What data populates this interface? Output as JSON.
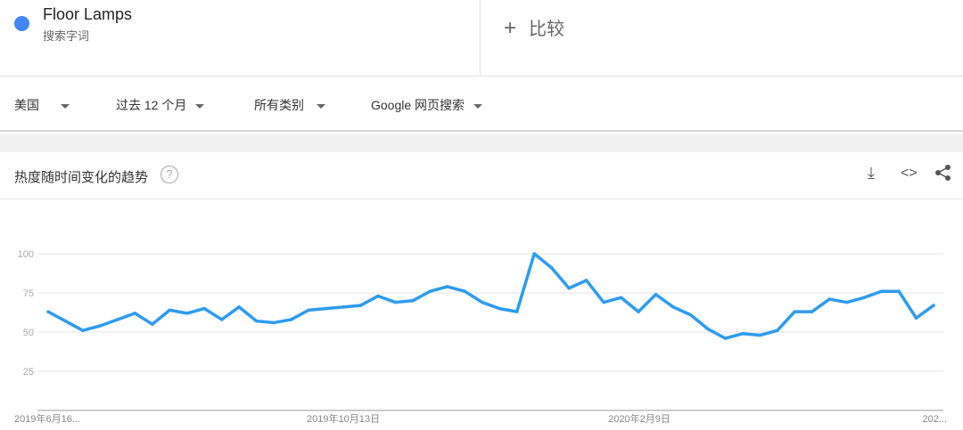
{
  "term": {
    "name": "Floor Lamps",
    "subtitle": "搜索字词",
    "color": "#4285f4"
  },
  "compare": {
    "icon": "plus-icon",
    "label": "比较",
    "plus": "+"
  },
  "filters": [
    "美国",
    "过去 12 个月",
    "所有类别",
    "Google 网页搜索"
  ],
  "card": {
    "title": "热度随时间变化的趋势",
    "help": "?",
    "actions": [
      "download-icon",
      "embed-icon",
      "share-icon"
    ]
  },
  "chart_data": {
    "type": "line",
    "title": "热度随时间变化的趋势",
    "ylim": [
      0,
      100
    ],
    "yticks": [
      "100",
      "75",
      "50",
      "25"
    ],
    "ytick_values": [
      100,
      75,
      50,
      25
    ],
    "xtick_labels": [
      "2019年6月16...",
      "2019年10月13日",
      "2020年2月9日",
      "202..."
    ],
    "xtick_indices": [
      0,
      17,
      34,
      51
    ],
    "grid": true,
    "line_color": "#2e9bf0",
    "series": [
      {
        "name": "Floor Lamps",
        "values": [
          63,
          57,
          51,
          54,
          58,
          62,
          55,
          64,
          62,
          65,
          58,
          66,
          57,
          56,
          58,
          64,
          65,
          66,
          67,
          73,
          69,
          70,
          76,
          79,
          76,
          69,
          65,
          63,
          100,
          91,
          78,
          83,
          69,
          72,
          63,
          74,
          66,
          61,
          52,
          46,
          49,
          48,
          51,
          63,
          63,
          71,
          69,
          72,
          76,
          76,
          59,
          67
        ]
      }
    ]
  }
}
